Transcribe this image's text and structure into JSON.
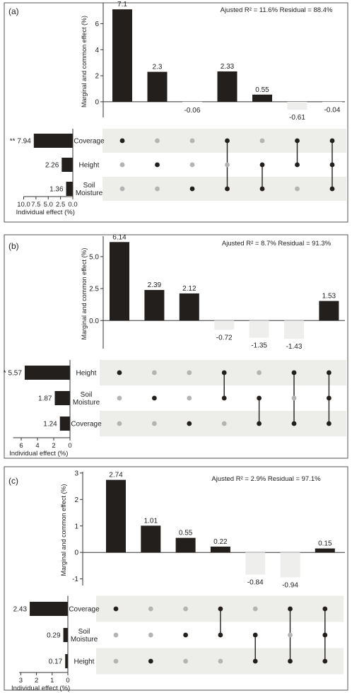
{
  "chart_data": [
    {
      "type": "bar",
      "panel_label": "(a)",
      "annotation": "Ajusted R² = 11.6% Residual = 88.4%",
      "ylabel": "Marginal and common effect (%)",
      "ylim": [
        -1.2,
        7.6
      ],
      "yticks": [
        0,
        2,
        4,
        6
      ],
      "ytick_labels": [
        "0",
        "2",
        "4",
        "6"
      ],
      "bar_values": [
        7.1,
        2.3,
        -0.06,
        2.33,
        0.55,
        -0.61,
        -0.04
      ],
      "bar_labels": [
        "7.1",
        "2.3",
        "-0.06",
        "2.33",
        "0.55",
        "-0.61",
        "-0.04"
      ],
      "sets": [
        "Coverage",
        "Height",
        "Soil\nMoisture"
      ],
      "memberships": [
        [
          0
        ],
        [
          1
        ],
        [
          2
        ],
        [
          0,
          2
        ],
        [
          1,
          2
        ],
        [
          0,
          1
        ],
        [
          0,
          1,
          2
        ]
      ],
      "individual_values": [
        7.94,
        2.26,
        1.36
      ],
      "individual_labels": [
        "** 7.94",
        "2.26",
        "1.36"
      ],
      "individual_xlabel": "Individual effect (%)",
      "individual_xlim": [
        0,
        10
      ],
      "individual_xticks": [
        10,
        7.5,
        5,
        2.5,
        0
      ],
      "individual_xtick_labels": [
        "10.0",
        "7.5",
        "5.0",
        "2.5",
        "0.0"
      ],
      "colors": {
        "positive": "#231f1c",
        "negative": "#eeeeec",
        "band": "#ededea",
        "inactive_dot": "#b4b4b4"
      }
    },
    {
      "type": "bar",
      "panel_label": "(b)",
      "annotation": "Ajusted R² = 8.7% Residual = 91.3%",
      "ylabel": "Marginal and common effect (%)",
      "ylim": [
        -2.2,
        6.6
      ],
      "yticks": [
        0,
        2.5,
        5
      ],
      "ytick_labels": [
        "0.0",
        "2.5",
        "5.0"
      ],
      "bar_values": [
        6.14,
        2.39,
        2.12,
        -0.72,
        -1.35,
        -1.43,
        1.53
      ],
      "bar_labels": [
        "6.14",
        "2.39",
        "2.12",
        "-0.72",
        "-1.35",
        "-1.43",
        "1.53"
      ],
      "sets": [
        "Height",
        "Soil\nMoisture",
        "Coverage"
      ],
      "memberships": [
        [
          0
        ],
        [
          1
        ],
        [
          2
        ],
        [
          0,
          1
        ],
        [
          1,
          2
        ],
        [
          0,
          2
        ],
        [
          0,
          1,
          2
        ]
      ],
      "individual_values": [
        5.57,
        1.87,
        1.24
      ],
      "individual_labels": [
        "* 5.57",
        "1.87",
        "1.24"
      ],
      "individual_xlabel": "Individual effect (%)",
      "individual_xlim": [
        0,
        7
      ],
      "individual_xticks": [
        6,
        4,
        2,
        0
      ],
      "individual_xtick_labels": [
        "6",
        "4",
        "2",
        "0"
      ],
      "colors": {
        "positive": "#231f1c",
        "negative": "#eeeeec",
        "band": "#ededea",
        "inactive_dot": "#b4b4b4"
      }
    },
    {
      "type": "bar",
      "panel_label": "(c)",
      "annotation": "Ajusted R² = 2.9% Residual = 97.1%",
      "ylabel": "Marginal and common effect (%)",
      "ylim": [
        -1.25,
        3.05
      ],
      "yticks": [
        -1,
        0,
        1,
        2,
        3
      ],
      "ytick_labels": [
        "-1",
        "0",
        "1",
        "2",
        "3"
      ],
      "bar_values": [
        2.74,
        1.01,
        0.55,
        0.22,
        -0.84,
        -0.94,
        0.15
      ],
      "bar_labels": [
        "2.74",
        "1.01",
        "0.55",
        "0.22",
        "-0.84",
        "-0.94",
        "0.15"
      ],
      "sets": [
        "Coverage",
        "Soil\nMoisture",
        "Height"
      ],
      "memberships": [
        [
          0
        ],
        [
          2
        ],
        [
          1
        ],
        [
          0,
          1
        ],
        [
          1,
          2
        ],
        [
          0,
          2
        ],
        [
          0,
          1,
          2
        ]
      ],
      "individual_values": [
        2.43,
        0.29,
        0.17
      ],
      "individual_labels": [
        "2.43",
        "0.29",
        "0.17"
      ],
      "individual_xlabel": "Individual effect (%)",
      "individual_xlim": [
        0,
        3.1
      ],
      "individual_xticks": [
        3,
        2,
        1,
        0
      ],
      "individual_xtick_labels": [
        "3",
        "2",
        "1",
        "0"
      ],
      "colors": {
        "positive": "#231f1c",
        "negative": "#eeeeec",
        "band": "#ededea",
        "inactive_dot": "#b4b4b4"
      }
    }
  ]
}
